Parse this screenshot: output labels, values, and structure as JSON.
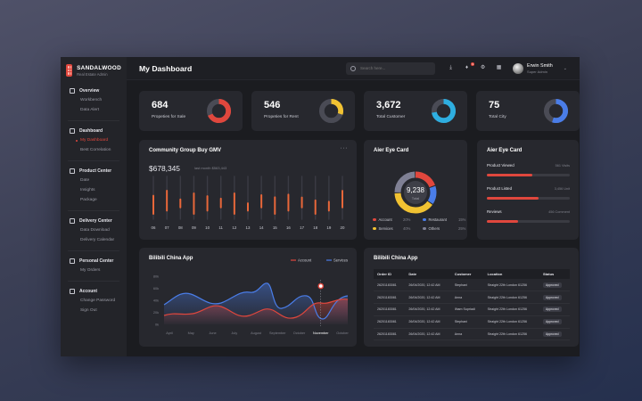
{
  "brand": {
    "name": "SANDALWOOD",
    "subtitle": "Real Estate Admin"
  },
  "sidebar": {
    "sections": [
      {
        "title": "Overview",
        "icon": "overview-icon",
        "items": [
          {
            "label": "Workbench"
          },
          {
            "label": "Data Alert"
          }
        ]
      },
      {
        "title": "Dashboard",
        "icon": "dashboard-icon",
        "items": [
          {
            "label": "My Dashboard",
            "active": true
          },
          {
            "label": "Best Correlation"
          }
        ]
      },
      {
        "title": "Product Center",
        "icon": "product-icon",
        "items": [
          {
            "label": "Date"
          },
          {
            "label": "Insights"
          },
          {
            "label": "Package"
          }
        ]
      },
      {
        "title": "Delivery Center",
        "icon": "delivery-icon",
        "items": [
          {
            "label": "Data Download"
          },
          {
            "label": "Delivery Calendar"
          }
        ]
      },
      {
        "title": "Personal Center",
        "icon": "person-icon",
        "items": [
          {
            "label": "My Orders"
          }
        ]
      },
      {
        "title": "Account",
        "icon": "gear-icon",
        "items": [
          {
            "label": "Change Password"
          },
          {
            "label": "Sign Out"
          }
        ]
      }
    ]
  },
  "header": {
    "title": "My Dashboard",
    "search_placeholder": "Search here...",
    "notification_count": "9",
    "user": {
      "name": "Erwin Smith",
      "role": "Super Admin"
    }
  },
  "stats": [
    {
      "value": "684",
      "label": "Propeties for Sale",
      "color": "#e0473d",
      "fraction": 0.68
    },
    {
      "value": "546",
      "label": "Propeties for Rent",
      "color": "#f1c232",
      "fraction": 0.3
    },
    {
      "value": "3,672",
      "label": "Total Customer",
      "color": "#2eaee0",
      "fraction": 0.72
    },
    {
      "value": "75",
      "label": "Total City",
      "color": "#4a7de8",
      "fraction": 0.55
    }
  ],
  "gmv": {
    "title": "Community Group Buy GMV",
    "value": "$678,345",
    "sub": "last month $563,443",
    "chart_data": {
      "type": "bar",
      "categories": [
        "06",
        "07",
        "08",
        "09",
        "10",
        "11",
        "12",
        "13",
        "14",
        "15",
        "16",
        "17",
        "18",
        "19",
        "20"
      ],
      "values": [
        60,
        70,
        45,
        66,
        56,
        47,
        66,
        38,
        56,
        56,
        60,
        50,
        48,
        42,
        67
      ]
    }
  },
  "eye_card_donut": {
    "title": "Aier Eye Card",
    "center_value": "9,238",
    "center_label": "Total",
    "legend": [
      {
        "label": "Account",
        "pct": "20%",
        "color": "#e0473d"
      },
      {
        "label": "Restaurant",
        "pct": "15%",
        "color": "#4a7de8"
      },
      {
        "label": "Services",
        "pct": "40%",
        "color": "#f1c232"
      },
      {
        "label": "Others",
        "pct": "25%",
        "color": "#7f8094"
      }
    ]
  },
  "eye_card_bars": {
    "title": "Aier Eye Card",
    "rows": [
      {
        "label": "Product Viewed",
        "value": "561 Visits",
        "fraction": 0.55
      },
      {
        "label": "Product Listed",
        "value": "3,456 Unit",
        "fraction": 0.62
      },
      {
        "label": "Reviews",
        "value": "456 Comment",
        "fraction": 0.38
      }
    ]
  },
  "line_chart": {
    "title": "Bilibili China App",
    "chart_data": {
      "type": "area",
      "categories": [
        "April",
        "May",
        "June",
        "July",
        "August",
        "September",
        "October",
        "November",
        "October"
      ],
      "series": [
        {
          "name": "Account",
          "color": "#e0473d"
        },
        {
          "name": "Services",
          "color": "#4a7de8"
        }
      ],
      "ytick_labels": [
        "0k",
        "20k",
        "40k",
        "60k",
        "80k"
      ],
      "highlight_category": "November"
    }
  },
  "orders": {
    "title": "Bilibili China App",
    "columns": [
      "Order ID",
      "Date",
      "Customer",
      "Location",
      "Status"
    ],
    "rows": [
      [
        "26201183081",
        "26/04/2020, 12:42 AM",
        "Stephani",
        "Straight 22th London 61256",
        "Approved"
      ],
      [
        "26201183081",
        "26/04/2020, 12:42 AM",
        "Anna",
        "Straight 22th London 61256",
        "Approved"
      ],
      [
        "26201183081",
        "26/04/2020, 12:42 AM",
        "Ilham Supriadi",
        "Straight 22th London 61256",
        "Approved"
      ],
      [
        "26201183081",
        "26/04/2020, 12:42 AM",
        "Stephani",
        "Straight 22th London 61256",
        "Approved"
      ],
      [
        "26201183081",
        "26/04/2020, 12:42 AM",
        "Anna",
        "Straight 22th London 61256",
        "Approved"
      ]
    ]
  }
}
